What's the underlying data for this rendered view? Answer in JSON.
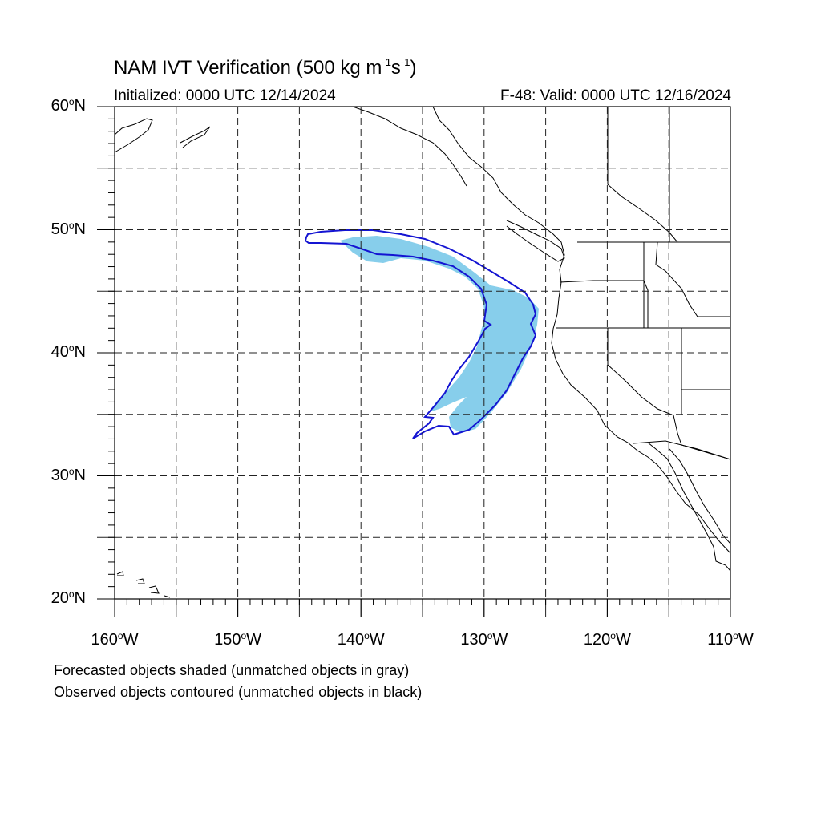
{
  "figure": {
    "title": "NAM IVT Verification (500 kg m",
    "title_unit_exp1": "-1",
    "title_unit_mid": "s",
    "title_unit_exp2": "-1",
    "title_close": ")",
    "initialized": "Initialized: 0000 UTC 12/14/2024",
    "valid": "F-48: Valid: 0000 UTC 12/16/2024"
  },
  "map": {
    "projection": "cylindrical equidistant",
    "lon_range": [
      -160,
      -110
    ],
    "lat_range": [
      20,
      60
    ],
    "gridlines": "dashed every 5 degrees",
    "lat_labels": [
      "60",
      "50",
      "40",
      "30",
      "20"
    ],
    "lat_suffix": "N",
    "lon_labels": [
      "160",
      "150",
      "140",
      "130",
      "120",
      "110"
    ],
    "lon_suffix": "W",
    "colors": {
      "forecast_fill": "#87ceeb",
      "observed_contour": "#1414d2",
      "coastline": "#000000",
      "grid": "#000000"
    }
  },
  "legend_notes": {
    "line1": "Forecasted objects shaded (unmatched objects in gray)",
    "line2": "Observed objects contoured (unmatched objects in black)"
  }
}
